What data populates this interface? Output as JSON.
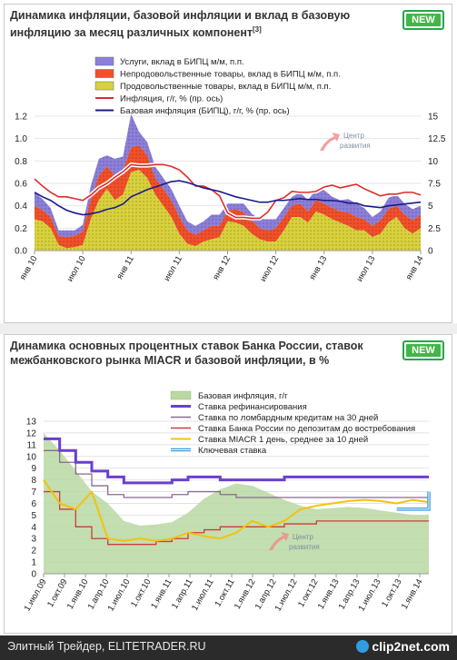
{
  "panels": [
    {
      "title": "Динамика инфляции, базовой инфляции и вклад в базовую инфляцию за месяц различных компонент",
      "footnote": "[3]",
      "badge": "NEW"
    },
    {
      "title": "Динамика основных процентных ставок Банка России, ставок межбанковского рынка MIACR и базовой инфляции, в %",
      "badge": "NEW"
    }
  ],
  "watermark": {
    "line1": "Центр",
    "line2": "развития"
  },
  "footer": {
    "left_text": "Элитный Трейдер, ELITETRADER.RU",
    "logo_text": "clip2net.com"
  },
  "colors": {
    "services": "#8b7fd9",
    "nonfood": "#f0502a",
    "food": "#d9d13c",
    "inflation": "#e02a2a",
    "core": "#1a1a8c",
    "core_area": "#b9d8a2",
    "refi": "#6a3fd0",
    "lombard": "#8a6a8a",
    "deposit": "#d03a3a",
    "miacr": "#f4c20d",
    "key": "#3a9ad9"
  },
  "chart_data": [
    {
      "type": "area",
      "legend": [
        "Услуги, вклад в БИПЦ м/м, п.п.",
        "Непродовольственные товары, вклад в БИПЦ м/м, п.п.",
        "Продовольственные товары, вклад в БИПЦ м/м, п.п.",
        "Инфляция, г/г, % (пр. ось)",
        "Базовая инфляция (БИПЦ), г/г, % (пр. ось)"
      ],
      "left_axis": {
        "ticks": [
          "1.2",
          "1.0",
          "0.8",
          "0.6",
          "0.4",
          "0.2",
          "0.0"
        ],
        "min": 0,
        "max": 1.2
      },
      "right_axis": {
        "ticks": [
          "15",
          "12.5",
          "10",
          "7.5",
          "5",
          "2.5",
          "0"
        ],
        "min": 0,
        "max": 15
      },
      "x_ticks": [
        "янв 10",
        "июл 10",
        "янв 11",
        "июл 11",
        "янв 12",
        "июл 12",
        "янв 13",
        "июл 13",
        "янв 14"
      ],
      "series": [
        {
          "name": "Продовольственные товары, вклад в БИПЦ м/м, п.п.",
          "values": [
            0.28,
            0.26,
            0.2,
            0.05,
            0.02,
            0.03,
            0.05,
            0.28,
            0.45,
            0.55,
            0.45,
            0.5,
            0.7,
            0.72,
            0.65,
            0.5,
            0.4,
            0.3,
            0.15,
            0.06,
            0.04,
            0.08,
            0.1,
            0.12,
            0.26,
            0.25,
            0.22,
            0.15,
            0.1,
            0.08,
            0.08,
            0.18,
            0.3,
            0.3,
            0.25,
            0.35,
            0.32,
            0.28,
            0.25,
            0.22,
            0.18,
            0.18,
            0.12,
            0.15,
            0.25,
            0.3,
            0.2,
            0.15,
            0.2
          ]
        },
        {
          "name": "Непродовольственные товары, вклад в БИПЦ м/м, п.п.",
          "values": [
            0.12,
            0.1,
            0.1,
            0.08,
            0.1,
            0.1,
            0.12,
            0.18,
            0.22,
            0.2,
            0.22,
            0.22,
            0.22,
            0.22,
            0.2,
            0.15,
            0.15,
            0.15,
            0.15,
            0.12,
            0.1,
            0.1,
            0.12,
            0.1,
            0.1,
            0.12,
            0.12,
            0.12,
            0.1,
            0.1,
            0.12,
            0.12,
            0.1,
            0.12,
            0.1,
            0.1,
            0.1,
            0.1,
            0.1,
            0.12,
            0.12,
            0.1,
            0.1,
            0.12,
            0.12,
            0.1,
            0.12,
            0.12,
            0.12
          ]
        },
        {
          "name": "Услуги, вклад в БИПЦ м/м, п.п.",
          "values": [
            0.12,
            0.1,
            0.08,
            0.05,
            0.06,
            0.05,
            0.06,
            0.12,
            0.15,
            0.1,
            0.15,
            0.12,
            0.3,
            0.12,
            0.12,
            0.1,
            0.1,
            0.1,
            0.1,
            0.08,
            0.08,
            0.08,
            0.1,
            0.1,
            0.06,
            0.05,
            0.08,
            0.06,
            0.08,
            0.1,
            0.08,
            0.08,
            0.08,
            0.1,
            0.1,
            0.1,
            0.12,
            0.1,
            0.1,
            0.12,
            0.12,
            0.1,
            0.08,
            0.08,
            0.1,
            0.1,
            0.1,
            0.1,
            0.08
          ]
        },
        {
          "name": "Инфляция, г/г, % (пр. ось)",
          "values": [
            8.0,
            7.2,
            6.5,
            6.0,
            6.0,
            5.8,
            5.6,
            6.2,
            7.0,
            7.5,
            8.2,
            8.8,
            9.6,
            9.5,
            9.5,
            9.6,
            9.6,
            9.4,
            9.0,
            8.2,
            7.2,
            7.2,
            6.8,
            6.1,
            4.2,
            3.7,
            3.7,
            3.6,
            3.6,
            4.3,
            5.6,
            5.9,
            6.6,
            6.5,
            6.5,
            6.6,
            7.1,
            7.3,
            7.0,
            7.2,
            7.4,
            6.9,
            6.5,
            6.1,
            6.3,
            6.3,
            6.5,
            6.5,
            6.2
          ]
        },
        {
          "name": "Базовая инфляция (БИПЦ), г/г, % (пр. ось)",
          "values": [
            6.5,
            6.0,
            5.6,
            5.0,
            4.5,
            4.2,
            4.0,
            4.1,
            4.3,
            4.6,
            4.8,
            5.2,
            6.0,
            6.4,
            6.8,
            7.1,
            7.4,
            7.7,
            7.8,
            7.6,
            7.3,
            7.0,
            6.8,
            6.6,
            6.3,
            6.0,
            5.8,
            5.6,
            5.4,
            5.4,
            5.6,
            5.6,
            5.7,
            5.8,
            5.7,
            5.7,
            5.6,
            5.6,
            5.5,
            5.3,
            5.3,
            5.0,
            4.9,
            4.8,
            5.0,
            5.1,
            5.2,
            5.3,
            5.4
          ]
        }
      ]
    },
    {
      "type": "line",
      "legend": [
        "Базовая инфляция, г/г",
        "Ставка рефинансирования",
        "Ставка по ломбардным кредитам на 30 дней",
        "Ставка Банка России по депозитам до востребования",
        "Ставка MIACR 1 день, среднее за 10 дней",
        "Ключевая ставка"
      ],
      "left_axis": {
        "ticks": [
          "13",
          "12",
          "11",
          "10",
          "9",
          "8",
          "7",
          "6",
          "5",
          "4",
          "3",
          "2",
          "1",
          "0"
        ],
        "min": 0,
        "max": 13
      },
      "x_ticks": [
        "1.июл.09",
        "1.окт.09",
        "1.янв.10",
        "1.апр.10",
        "1.июл.10",
        "1.окт.10",
        "1.янв.11",
        "1.апр.11",
        "1.июл.11",
        "1.окт.11",
        "1.янв.12",
        "1.апр.12",
        "1.июл.12",
        "1.окт.12",
        "1.янв.13",
        "1.апр.13",
        "1.июл.13",
        "1.окт.13",
        "1.янв.14"
      ],
      "series": [
        {
          "name": "Базовая инфляция, г/г",
          "values": [
            12.0,
            10.5,
            8.8,
            7.0,
            6.0,
            4.5,
            4.1,
            4.2,
            4.4,
            5.2,
            6.4,
            7.2,
            7.7,
            7.5,
            6.9,
            6.3,
            5.8,
            5.5,
            5.6,
            5.7,
            5.6,
            5.4,
            5.2,
            5.0,
            5.0
          ]
        },
        {
          "name": "Ставка рефинансирования",
          "values": [
            11.5,
            10.5,
            9.5,
            8.75,
            8.25,
            7.75,
            7.75,
            7.75,
            8.0,
            8.25,
            8.25,
            8.0,
            8.0,
            8.0,
            8.0,
            8.25,
            8.25,
            8.25,
            8.25,
            8.25,
            8.25,
            8.25,
            8.25,
            8.25,
            8.25
          ]
        },
        {
          "name": "Ставка по ломбардным кредитам на 30 дней",
          "values": [
            10.5,
            9.5,
            8.5,
            7.5,
            6.75,
            6.5,
            6.5,
            6.5,
            6.75,
            7.0,
            7.0,
            6.75,
            6.5,
            6.5,
            6.5,
            6.5,
            6.5,
            6.5,
            6.5,
            6.5,
            6.5,
            6.5,
            6.5,
            6.5,
            6.5
          ]
        },
        {
          "name": "Ставка Банка России по депозитам до востребования",
          "values": [
            7.0,
            5.5,
            4.0,
            3.0,
            2.5,
            2.5,
            2.5,
            2.75,
            3.0,
            3.5,
            3.75,
            4.0,
            4.0,
            4.0,
            4.0,
            4.25,
            4.25,
            4.5,
            4.5,
            4.5,
            4.5,
            4.5,
            4.5,
            4.5,
            4.5
          ]
        },
        {
          "name": "Ставка MIACR 1 день, среднее за 10 дней",
          "values": [
            8.0,
            6.0,
            5.5,
            7.0,
            3.0,
            2.8,
            3.0,
            2.8,
            3.0,
            3.5,
            3.2,
            3.0,
            3.5,
            4.5,
            4.0,
            4.5,
            5.5,
            5.8,
            6.0,
            6.2,
            6.3,
            6.2,
            6.0,
            6.3,
            6.1
          ]
        },
        {
          "name": "Ключевая ставка",
          "values": [
            null,
            null,
            null,
            null,
            null,
            null,
            null,
            null,
            null,
            null,
            null,
            null,
            null,
            null,
            null,
            null,
            null,
            null,
            null,
            null,
            null,
            null,
            5.5,
            5.5,
            5.5
          ]
        }
      ]
    }
  ]
}
